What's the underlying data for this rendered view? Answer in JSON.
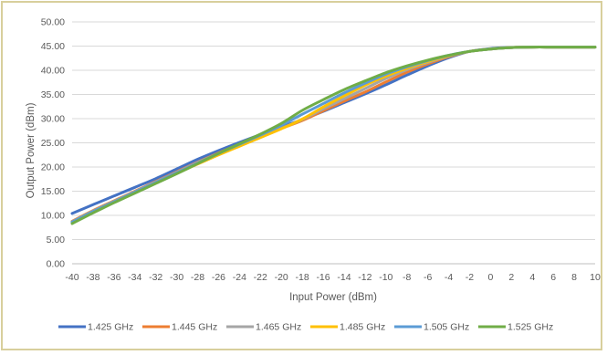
{
  "chart_data": {
    "type": "line",
    "title": "",
    "xlabel": "Input Power (dBm)",
    "ylabel": "Output Power (dBm)",
    "xlim": [
      -40,
      10
    ],
    "ylim": [
      0,
      50
    ],
    "x_ticks": [
      "-40",
      "-38",
      "-36",
      "-34",
      "-32",
      "-30",
      "-28",
      "-26",
      "-24",
      "-22",
      "-20",
      "-18",
      "-16",
      "-14",
      "-12",
      "-10",
      "-8",
      "-6",
      "-4",
      "-2",
      "0",
      "2",
      "4",
      "6",
      "8",
      "10"
    ],
    "y_ticks": [
      "0.00",
      "5.00",
      "10.00",
      "15.00",
      "20.00",
      "25.00",
      "30.00",
      "35.00",
      "40.00",
      "45.00",
      "50.00"
    ],
    "grid": "horizontal",
    "legend_position": "bottom",
    "x": [
      -40,
      -38,
      -36,
      -34,
      -32,
      -30,
      -28,
      -26,
      -24,
      -22,
      -20,
      -18,
      -16,
      -14,
      -12,
      -10,
      -8,
      -6,
      -4,
      -2,
      0,
      2,
      4,
      6,
      8,
      10
    ],
    "series": [
      {
        "name": "1.425 GHz",
        "color": "#4472c4",
        "values": [
          10.4,
          12.2,
          14.0,
          15.8,
          17.6,
          19.6,
          21.6,
          23.4,
          25.1,
          26.7,
          28.3,
          29.8,
          31.5,
          33.3,
          35.1,
          37.0,
          39.0,
          40.9,
          42.6,
          43.9,
          44.5,
          44.7,
          44.8,
          44.8,
          44.8,
          44.8
        ]
      },
      {
        "name": "1.445 GHz",
        "color": "#ed7d31",
        "values": [
          8.8,
          11.0,
          13.0,
          15.0,
          17.0,
          19.0,
          21.0,
          22.9,
          24.7,
          26.4,
          28.0,
          29.6,
          31.6,
          33.6,
          35.5,
          37.6,
          39.6,
          41.3,
          42.8,
          43.9,
          44.4,
          44.7,
          44.8,
          44.8,
          44.8,
          44.8
        ]
      },
      {
        "name": "1.465 GHz",
        "color": "#a5a5a5",
        "values": [
          8.7,
          10.9,
          12.9,
          14.9,
          16.9,
          18.9,
          20.9,
          22.8,
          24.6,
          26.3,
          28.0,
          29.8,
          32.0,
          34.1,
          36.2,
          38.3,
          40.1,
          41.6,
          42.9,
          43.9,
          44.4,
          44.7,
          44.8,
          44.8,
          44.8,
          44.8
        ]
      },
      {
        "name": "1.485 GHz",
        "color": "#ffc000",
        "values": [
          8.6,
          10.8,
          12.8,
          14.7,
          16.7,
          18.7,
          20.6,
          22.5,
          24.3,
          26.1,
          27.9,
          29.9,
          32.4,
          34.7,
          36.9,
          38.8,
          40.4,
          41.8,
          43.0,
          43.9,
          44.4,
          44.7,
          44.8,
          44.8,
          44.8,
          44.8
        ]
      },
      {
        "name": "1.505 GHz",
        "color": "#5b9bd5",
        "values": [
          8.6,
          10.8,
          12.8,
          14.8,
          16.8,
          18.8,
          20.8,
          22.8,
          24.7,
          26.6,
          28.6,
          30.9,
          33.1,
          35.3,
          37.3,
          39.2,
          40.7,
          42.0,
          43.1,
          43.9,
          44.4,
          44.7,
          44.8,
          44.8,
          44.8,
          44.8
        ]
      },
      {
        "name": "1.525 GHz",
        "color": "#70ad47",
        "values": [
          8.3,
          10.5,
          12.6,
          14.6,
          16.6,
          18.6,
          20.7,
          22.8,
          24.8,
          26.8,
          29.0,
          31.7,
          33.9,
          36.0,
          37.8,
          39.5,
          40.9,
          42.1,
          43.1,
          43.9,
          44.4,
          44.7,
          44.8,
          44.8,
          44.8,
          44.8
        ]
      }
    ]
  }
}
